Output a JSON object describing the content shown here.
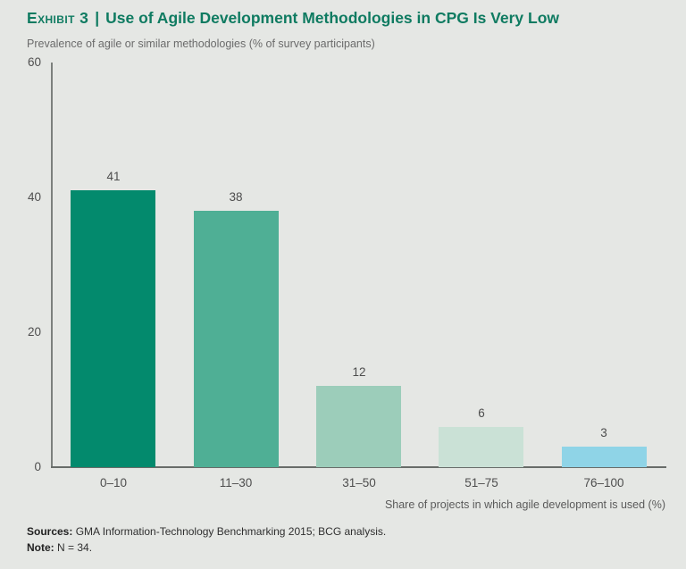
{
  "header": {
    "exhibit_label": "Exhibit 3",
    "separator": "|",
    "title": "Use of Agile Development Methodologies in CPG Is Very Low",
    "subtitle": "Prevalence of agile or similar methodologies (% of survey participants)"
  },
  "chart_data": {
    "type": "bar",
    "categories": [
      "0–10",
      "11–30",
      "31–50",
      "51–75",
      "76–100"
    ],
    "values": [
      41,
      38,
      12,
      6,
      3
    ],
    "bar_colors": [
      "#038a6d",
      "#4faf95",
      "#9ccdba",
      "#cae1d6",
      "#8fd4e7"
    ],
    "title": "Prevalence of agile or similar methodologies (% of survey participants)",
    "xlabel": "Share of projects in which agile development is used (%)",
    "ylabel": "",
    "ylim": [
      0,
      60
    ],
    "yticks": [
      0,
      20,
      40,
      60
    ],
    "grid": false,
    "legend": "none",
    "value_labels_shown": true
  },
  "colors": {
    "background": "#e5e7e4",
    "title_green": "#0f7b61",
    "axis_gray": "#7c807d",
    "baseline_gray": "#686c69",
    "label_gray": "#4d4d4d"
  },
  "footer": {
    "sources_label": "Sources:",
    "sources_text": " GMA Information-Technology Benchmarking 2015; BCG analysis.",
    "note_label": "Note:",
    "note_text": " N = 34."
  }
}
